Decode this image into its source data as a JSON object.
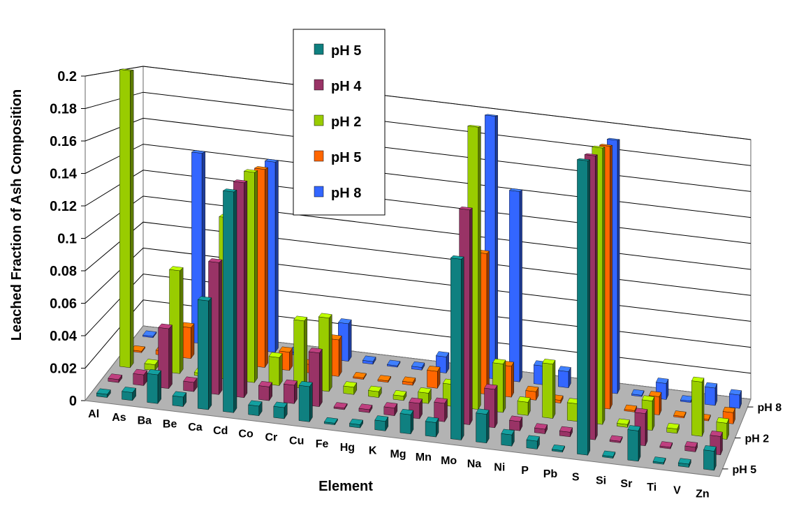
{
  "chart_data": {
    "type": "bar",
    "subtype": "3d-clustered-column",
    "title": "",
    "xlabel": "Element",
    "ylabel": "Leached Fraction of Ash Composition",
    "ylim": [
      0,
      0.2
    ],
    "y_ticks": [
      "0",
      "0.02",
      "0.04",
      "0.06",
      "0.08",
      "0.1",
      "0.12",
      "0.14",
      "0.16",
      "0.18",
      "0.2"
    ],
    "depth_labels": [
      "pH 5",
      "pH 2",
      "pH 8"
    ],
    "legend_placement": "top-center",
    "grid": true,
    "categories": [
      "Al",
      "As",
      "Ba",
      "Be",
      "Ca",
      "Cd",
      "Co",
      "Cr",
      "Cu",
      "Fe",
      "Hg",
      "K",
      "Mg",
      "Mn",
      "Mo",
      "Na",
      "Ni",
      "P",
      "Pb",
      "S",
      "Si",
      "Sr",
      "Ti",
      "V",
      "Zn"
    ],
    "series": [
      {
        "name": "pH 5",
        "color": "#0f8080",
        "values": [
          0.002,
          0.005,
          0.018,
          0.006,
          0.068,
          0.138,
          0.006,
          0.007,
          0.022,
          0.001,
          0.002,
          0.006,
          0.012,
          0.009,
          0.113,
          0.018,
          0.007,
          0.005,
          0.001,
          0.184,
          0.001,
          0.019,
          0.001,
          0.002,
          0.012
        ]
      },
      {
        "name": "pH 4",
        "color": "#993366",
        "values": [
          0.002,
          0.007,
          0.039,
          0.006,
          0.086,
          0.14,
          0.009,
          0.012,
          0.035,
          0.001,
          0.002,
          0.005,
          0.01,
          0.012,
          0.14,
          0.025,
          0.006,
          0.003,
          0.003,
          0.185,
          0.001,
          0.021,
          0.001,
          0.003,
          0.012
        ]
      },
      {
        "name": "pH 2",
        "color": "#99cc00",
        "values": [
          0.202,
          0.004,
          0.07,
          0.002,
          0.11,
          0.143,
          0.019,
          0.046,
          0.05,
          0.005,
          0.004,
          0.003,
          0.007,
          0.015,
          0.192,
          0.033,
          0.009,
          0.037,
          0.012,
          0.188,
          0.002,
          0.02,
          0.003,
          0.037,
          0.011
        ]
      },
      {
        "name": "pH 5",
        "color": "#ff6600",
        "values": [
          0.001,
          0.003,
          0.022,
          0.004,
          0.02,
          0.141,
          0.013,
          0.006,
          0.026,
          0.001,
          0.001,
          0.002,
          0.012,
          0.005,
          0.1,
          0.022,
          0.006,
          0.002,
          0.001,
          0.187,
          0.001,
          0.013,
          0.001,
          0.001,
          0.008
        ]
      },
      {
        "name": "pH 8",
        "color": "#3366ff",
        "values": [
          0.001,
          0.002,
          0.142,
          0.003,
          0.026,
          0.142,
          0.002,
          0.002,
          0.028,
          0.002,
          0.001,
          0.002,
          0.012,
          0.004,
          0.196,
          0.142,
          0.014,
          0.012,
          0.01,
          0.189,
          0.001,
          0.012,
          0.001,
          0.013,
          0.01
        ]
      }
    ]
  }
}
